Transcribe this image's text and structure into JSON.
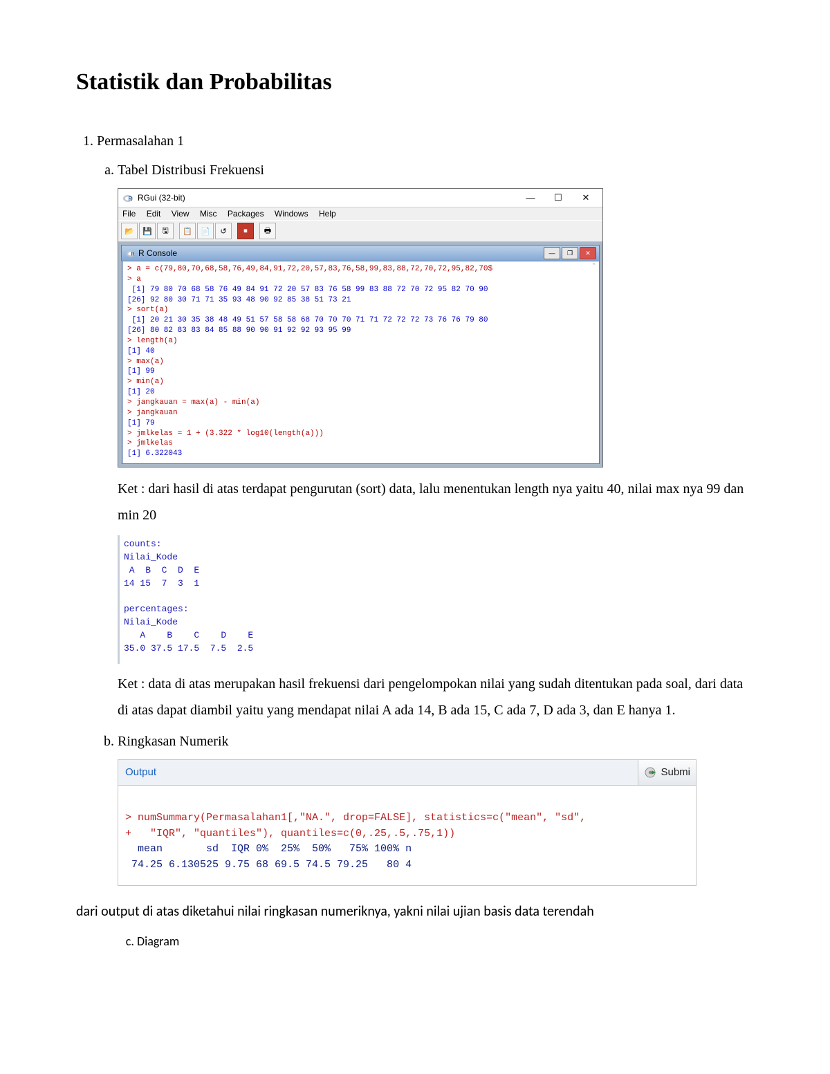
{
  "title": "Statistik dan Probabilitas",
  "section1": {
    "num_label": "Permasalahan 1",
    "a_label": "Tabel Distribusi Frekuensi",
    "b_label": "Ringkasan Numerik",
    "c_label": "Diagram",
    "ket1": "Ket : dari hasil di atas terdapat pengurutan (sort) data, lalu menentukan length nya yaitu 40, nilai max nya 99 dan min 20",
    "ket2": "Ket : data di atas merupakan hasil frekuensi dari pengelompokan nilai yang sudah ditentukan pada soal, dari data di atas dapat diambil yaitu yang mendapat nilai A ada 14, B ada 15, C ada 7, D ada 3, dan E hanya 1.",
    "note_after_output": "dari output di atas diketahui nilai ringkasan numeriknya, yakni nilai ujian basis data terendah"
  },
  "rgui": {
    "title": "RGui (32-bit)",
    "menu": [
      "File",
      "Edit",
      "View",
      "Misc",
      "Packages",
      "Windows",
      "Help"
    ],
    "toolbar_icons": [
      "open-icon",
      "load-icon",
      "save-icon",
      "copy-icon",
      "paste-icon",
      "undo-icon",
      "stop-icon",
      "print-icon"
    ],
    "toolbar_glyphs": [
      "📂",
      "💾",
      "🖫",
      "📋",
      "📄",
      "↺",
      "⏹",
      "🖶"
    ],
    "stop_color": "#c0392b",
    "console_title": "R Console",
    "lines": [
      {
        "t": "cmd",
        "s": "> a = c(79,80,70,68,58,76,49,84,91,72,20,57,83,76,58,99,83,88,72,70,72,95,82,70$"
      },
      {
        "t": "cmd",
        "s": "> a"
      },
      {
        "t": "out",
        "s": " [1] 79 80 70 68 58 76 49 84 91 72 20 57 83 76 58 99 83 88 72 70 72 95 82 70 90"
      },
      {
        "t": "out",
        "s": "[26] 92 80 30 71 71 35 93 48 90 92 85 38 51 73 21"
      },
      {
        "t": "cmd",
        "s": "> sort(a)"
      },
      {
        "t": "out",
        "s": " [1] 20 21 30 35 38 48 49 51 57 58 58 68 70 70 70 71 71 72 72 72 73 76 76 79 80"
      },
      {
        "t": "out",
        "s": "[26] 80 82 83 83 84 85 88 90 90 91 92 92 93 95 99"
      },
      {
        "t": "cmd",
        "s": "> length(a)"
      },
      {
        "t": "out",
        "s": "[1] 40"
      },
      {
        "t": "cmd",
        "s": "> max(a)"
      },
      {
        "t": "out",
        "s": "[1] 99"
      },
      {
        "t": "cmd",
        "s": "> min(a)"
      },
      {
        "t": "out",
        "s": "[1] 20"
      },
      {
        "t": "cmd",
        "s": "> jangkauan = max(a) - min(a)"
      },
      {
        "t": "cmd",
        "s": "> jangkauan"
      },
      {
        "t": "out",
        "s": "[1] 79"
      },
      {
        "t": "cmd",
        "s": "> jmlkelas = 1 + (3.322 * log10(length(a)))"
      },
      {
        "t": "cmd",
        "s": "> jmlkelas"
      },
      {
        "t": "out",
        "s": "[1] 6.322043"
      }
    ]
  },
  "freq_block": {
    "lines": [
      "counts:",
      "Nilai_Kode",
      " A  B  C  D  E",
      "14 15  7  3  1",
      "",
      "percentages:",
      "Nilai_Kode",
      "   A    B    C    D    E",
      "35.0 37.5 17.5  7.5  2.5"
    ]
  },
  "output_panel": {
    "header_label": "Output",
    "submit_label": "Submi",
    "lines": [
      {
        "t": "cmd",
        "s": "> numSummary(Permasalahan1[,\"NA.\", drop=FALSE], statistics=c(\"mean\", \"sd\","
      },
      {
        "t": "cmd",
        "s": "+   \"IQR\", \"quantiles\"), quantiles=c(0,.25,.5,.75,1))"
      },
      {
        "t": "out",
        "s": "  mean       sd  IQR 0%  25%  50%   75% 100% n"
      },
      {
        "t": "out",
        "s": " 74.25 6.130525 9.75 68 69.5 74.5 79.25   80 4"
      }
    ]
  },
  "colors": {
    "cmd": "#b00000",
    "out": "#0000c8",
    "panel_cmd": "#bb2222",
    "panel_out": "#102080",
    "link_blue": "#1560c0"
  }
}
